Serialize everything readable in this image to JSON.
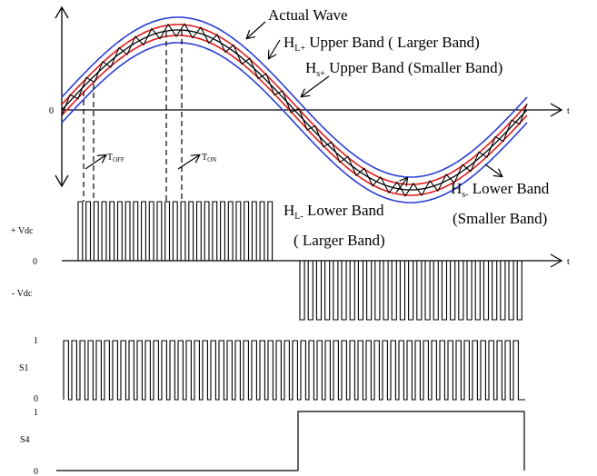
{
  "labels": {
    "actual_wave": "Actual Wave",
    "hl_plus": {
      "main": "H",
      "sub": "L+",
      "rest": " Upper Band ( Larger Band)"
    },
    "hs_plus": {
      "main": "H",
      "sub": "s+",
      "rest": " Upper Band (Smaller Band)"
    },
    "hl_minus": {
      "main": "H",
      "sub": "L-",
      "rest": " Lower Band"
    },
    "hl_minus_line2": "( Larger Band)",
    "hs_minus": {
      "main": "H",
      "sub": "s-",
      "rest": " Lower Band"
    },
    "hs_minus_line2": "(Smaller Band)",
    "t_off": {
      "main": "T",
      "sub": "OFF"
    },
    "t_on": {
      "main": "T",
      "sub": "ON"
    }
  },
  "axes": {
    "zero_top": "0",
    "t_top": "t",
    "plus_vdc": "+ Vdc",
    "zero_mid": "0",
    "minus_vdc": "- Vdc",
    "t_mid": "t",
    "s1_label": "S1",
    "s1_one": "1",
    "s1_zero": "0",
    "s4_label": "S4",
    "s4_one": "1",
    "s4_zero": "0"
  },
  "colors": {
    "outer_band": "#2b3fd6",
    "inner_band": "#e01b1b",
    "wave": "#000000"
  }
}
